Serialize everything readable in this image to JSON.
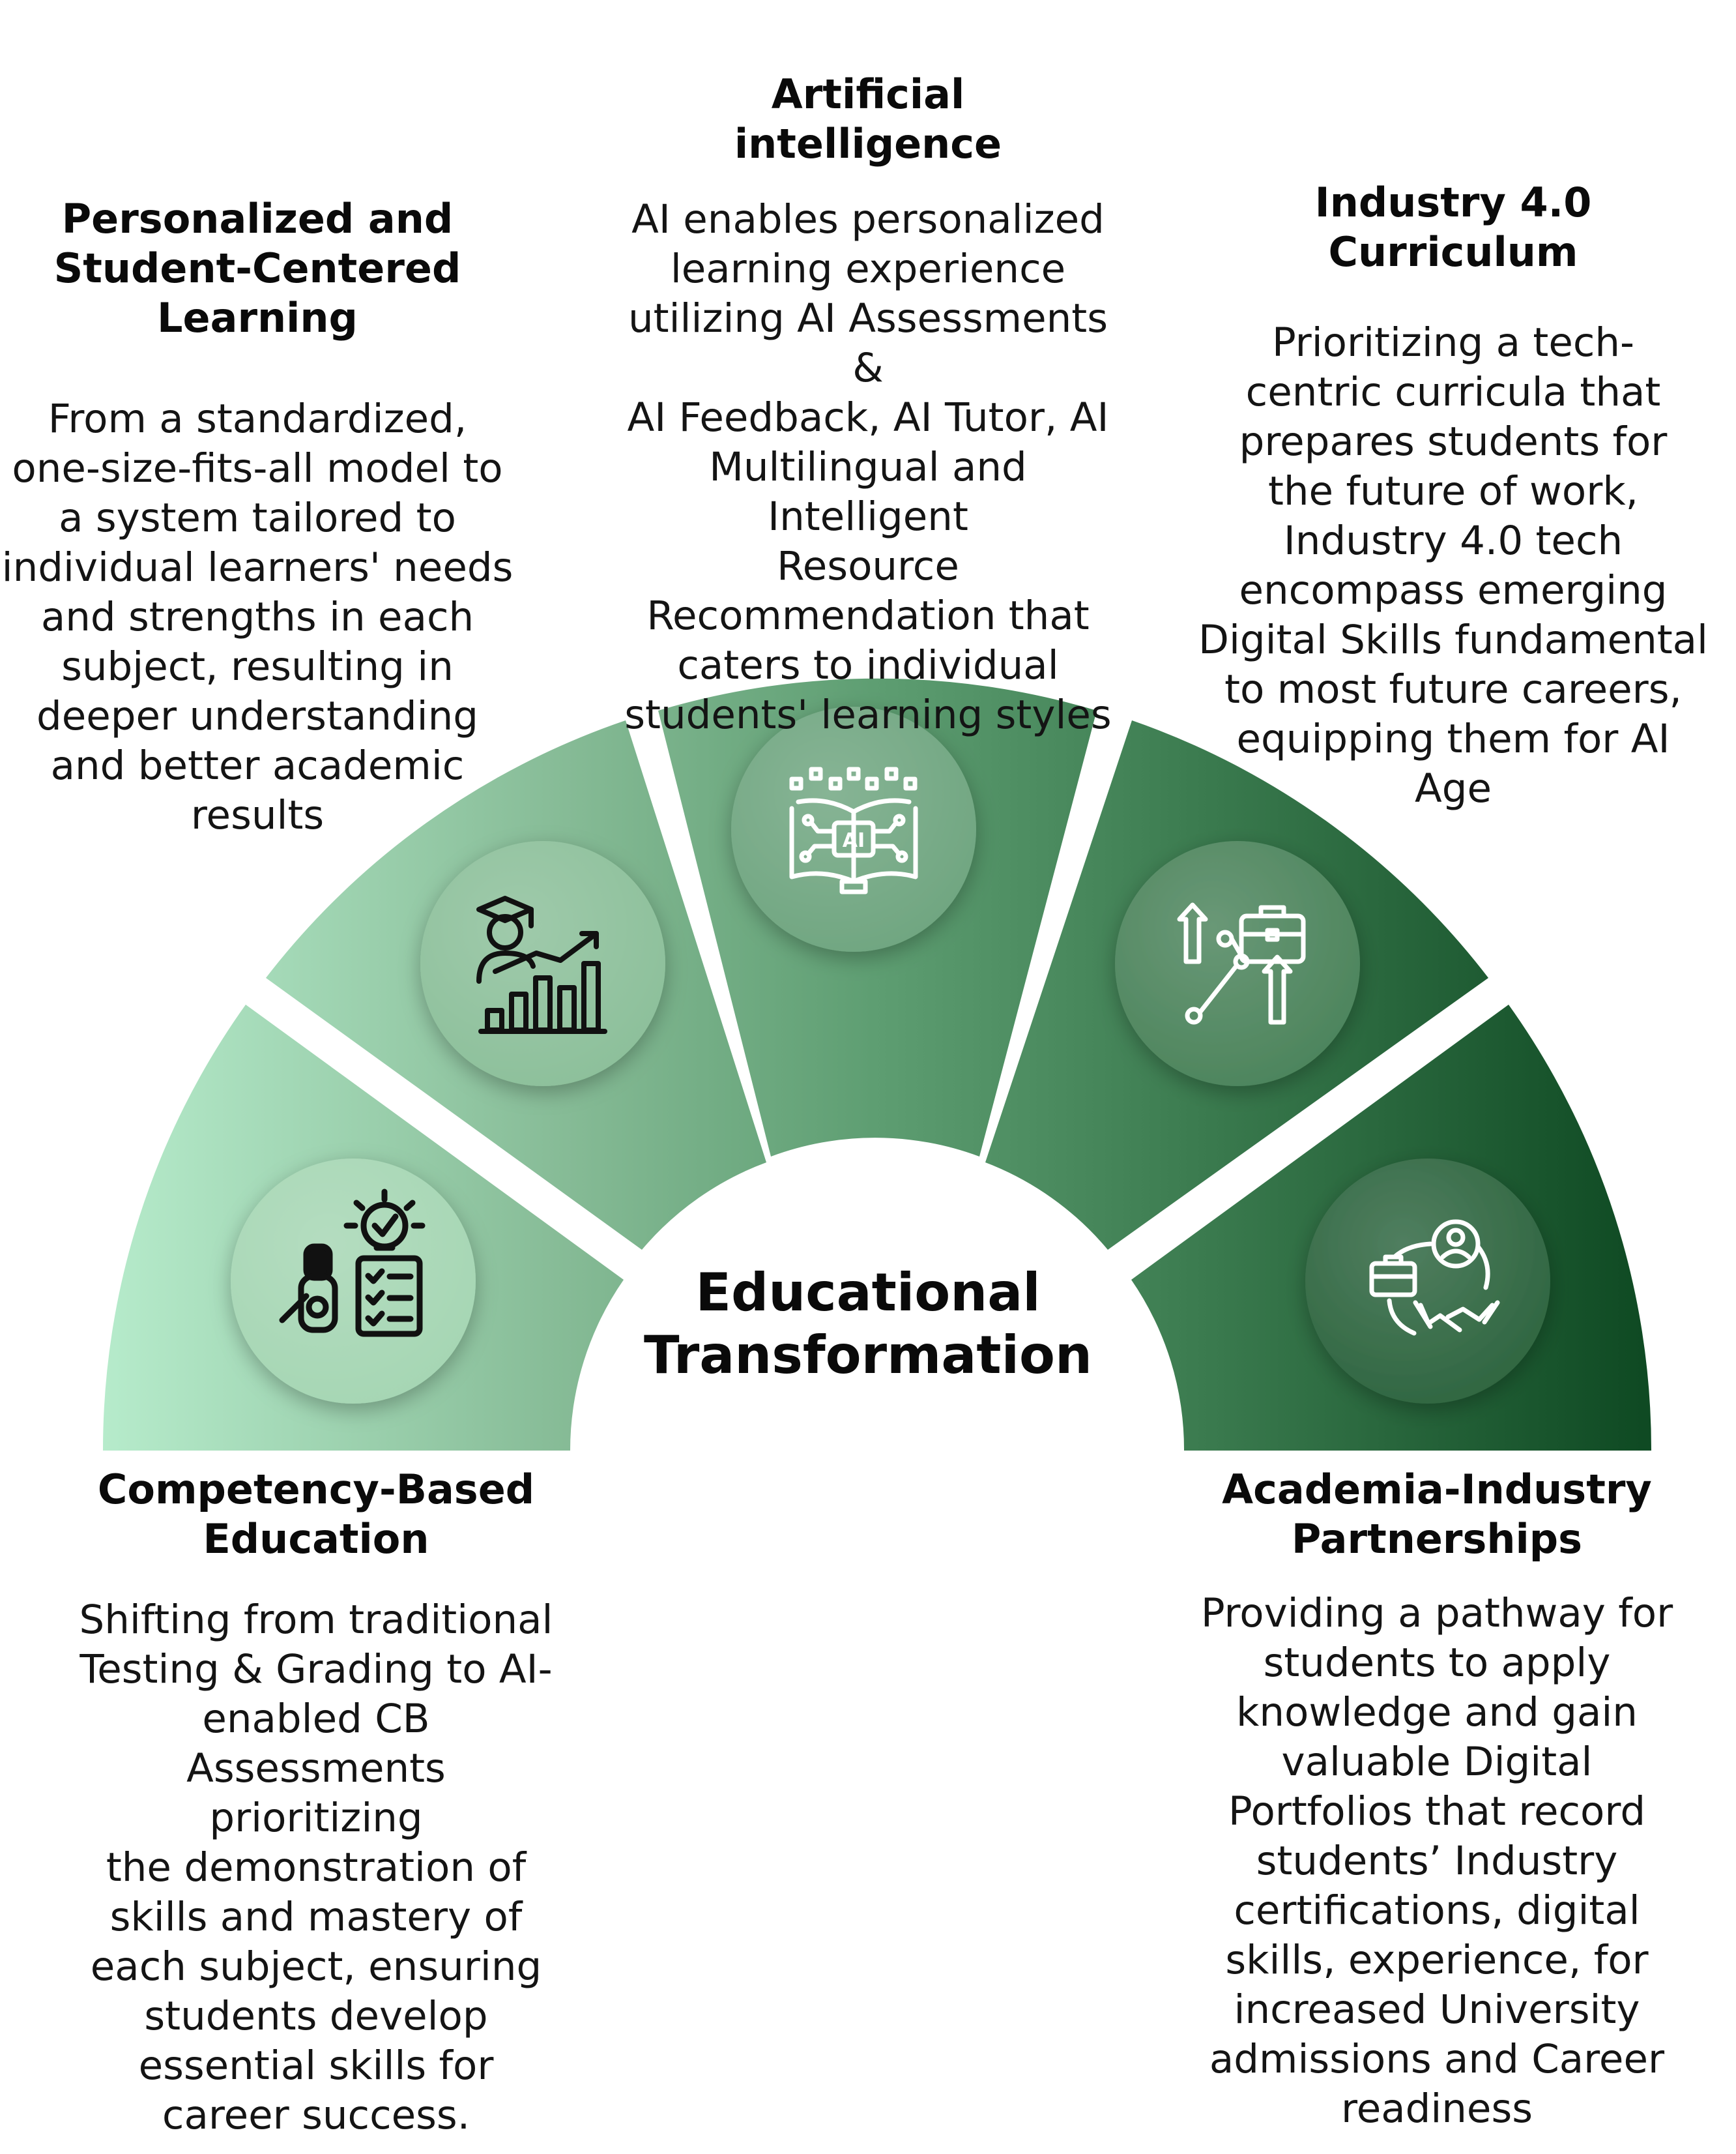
{
  "center": {
    "title_line1": "Educational",
    "title_line2": "Transformation"
  },
  "colors": {
    "segment_light": "#b6ebcb",
    "segment_dark": "#0f4a23",
    "icon_stroke": "#ffffff",
    "icon_dark": "#111111"
  },
  "segments": [
    {
      "id": "competency",
      "icon": "robot-checklist-lightbulb-icon",
      "heading_lines": [
        "Competency-Based",
        "Education"
      ],
      "desc_lines": [
        "Shifting from traditional",
        "Testing & Grading to AI-",
        "enabled CB",
        "Assessments prioritizing",
        "the demonstration of",
        "skills and mastery of",
        "each subject, ensuring",
        "students develop",
        "essential skills for",
        "career success."
      ]
    },
    {
      "id": "personalized",
      "icon": "graduate-growth-chart-icon",
      "heading_lines": [
        "Personalized and",
        "Student-Centered",
        "Learning"
      ],
      "desc_lines": [
        "From a standardized,",
        "one-size-fits-all model to",
        "a system tailored to",
        "individual learners' needs",
        "and strengths in each",
        "subject, resulting in",
        "deeper understanding",
        "and better academic",
        "results"
      ]
    },
    {
      "id": "ai",
      "icon": "ai-book-circuit-icon",
      "heading_lines": [
        "Artificial",
        "intelligence"
      ],
      "desc_lines": [
        "AI enables personalized",
        "learning experience",
        "utilizing AI Assessments &",
        "AI Feedback, AI Tutor, AI",
        "Multilingual and Intelligent",
        "Resource",
        "Recommendation that",
        "caters to individual",
        "students' learning styles"
      ]
    },
    {
      "id": "industry",
      "icon": "briefcase-career-path-icon",
      "heading_lines": [
        "Industry 4.0",
        "Curriculum"
      ],
      "desc_lines": [
        "Prioritizing a tech-",
        "centric curricula that",
        "prepares students for",
        "the future of work,",
        "Industry 4.0 tech",
        "encompass emerging",
        "Digital Skills fundamental",
        "to most future careers,",
        "equipping them for AI",
        "Age"
      ]
    },
    {
      "id": "partnerships",
      "icon": "handshake-network-icon",
      "heading_lines": [
        "Academia-Industry",
        "Partnerships"
      ],
      "desc_lines": [
        "Providing a pathway for",
        "students to apply",
        "knowledge and gain",
        "valuable Digital",
        "Portfolios that record",
        "students’ Industry",
        "certifications, digital",
        "skills, experience, for",
        "increased University",
        "admissions and Career",
        "readiness"
      ]
    }
  ]
}
